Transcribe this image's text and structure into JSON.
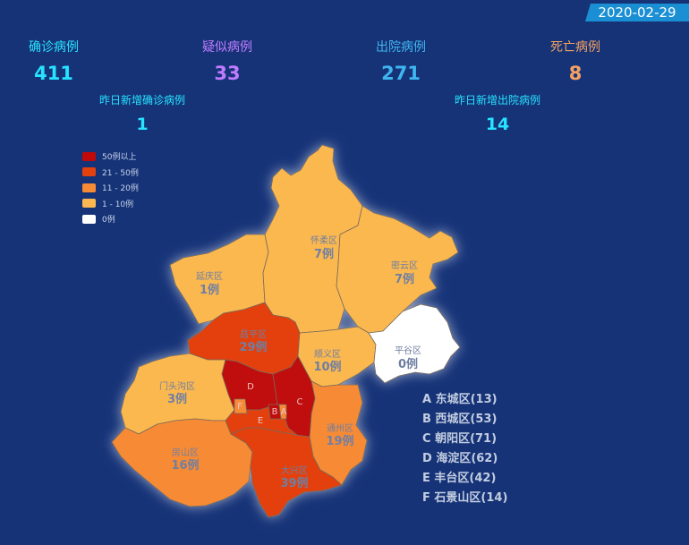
{
  "date": "2020-02-29",
  "stats": {
    "confirmed": {
      "label": "确诊病例",
      "value": "411",
      "color": "#27e3ff"
    },
    "suspected": {
      "label": "疑似病例",
      "value": "33",
      "color": "#c07cff"
    },
    "recovered": {
      "label": "出院病例",
      "value": "271",
      "color": "#3fb6f0"
    },
    "deaths": {
      "label": "死亡病例",
      "value": "8",
      "color": "#f5a261"
    }
  },
  "daily": {
    "new_confirmed": {
      "label": "昨日新增确诊病例",
      "value": "1"
    },
    "new_recovered": {
      "label": "昨日新增出院病例",
      "value": "14"
    }
  },
  "legend": [
    {
      "label": "50例以上",
      "color": "#c00a0a"
    },
    {
      "label": "21 - 50例",
      "color": "#e3410e"
    },
    {
      "label": "11 - 20例",
      "color": "#f78b35"
    },
    {
      "label": "1 - 10例",
      "color": "#fbb850"
    },
    {
      "label": "0例",
      "color": "#ffffff"
    }
  ],
  "districts": {
    "huairou": {
      "name": "怀柔区",
      "count": "7例",
      "value": 7
    },
    "miyun": {
      "name": "密云区",
      "count": "7例",
      "value": 7
    },
    "yanqing": {
      "name": "延庆区",
      "count": "1例",
      "value": 1
    },
    "changping": {
      "name": "昌平区",
      "count": "29例",
      "value": 29
    },
    "shunyi": {
      "name": "顺义区",
      "count": "10例",
      "value": 10
    },
    "pinggu": {
      "name": "平谷区",
      "count": "0例",
      "value": 0
    },
    "mentougou": {
      "name": "门头沟区",
      "count": "3例",
      "value": 3
    },
    "tongzhou": {
      "name": "通州区",
      "count": "19例",
      "value": 19
    },
    "fangshan": {
      "name": "房山区",
      "count": "16例",
      "value": 16
    },
    "daxing": {
      "name": "大兴区",
      "count": "39例",
      "value": 39
    },
    "dongcheng": {
      "letter": "A",
      "value": 13
    },
    "xicheng": {
      "letter": "B",
      "value": 53
    },
    "chaoyang": {
      "letter": "C",
      "value": 71
    },
    "haidian": {
      "letter": "D",
      "value": 62
    },
    "fengtai": {
      "letter": "E",
      "value": 42
    },
    "shijingshan": {
      "letter": "F",
      "value": 14
    }
  },
  "key": [
    "A 东城区(13)",
    "B 西城区(53)",
    "C 朝阳区(71)",
    "D 海淀区(62)",
    "E 丰台区(42)",
    "F 石景山区(14)"
  ]
}
